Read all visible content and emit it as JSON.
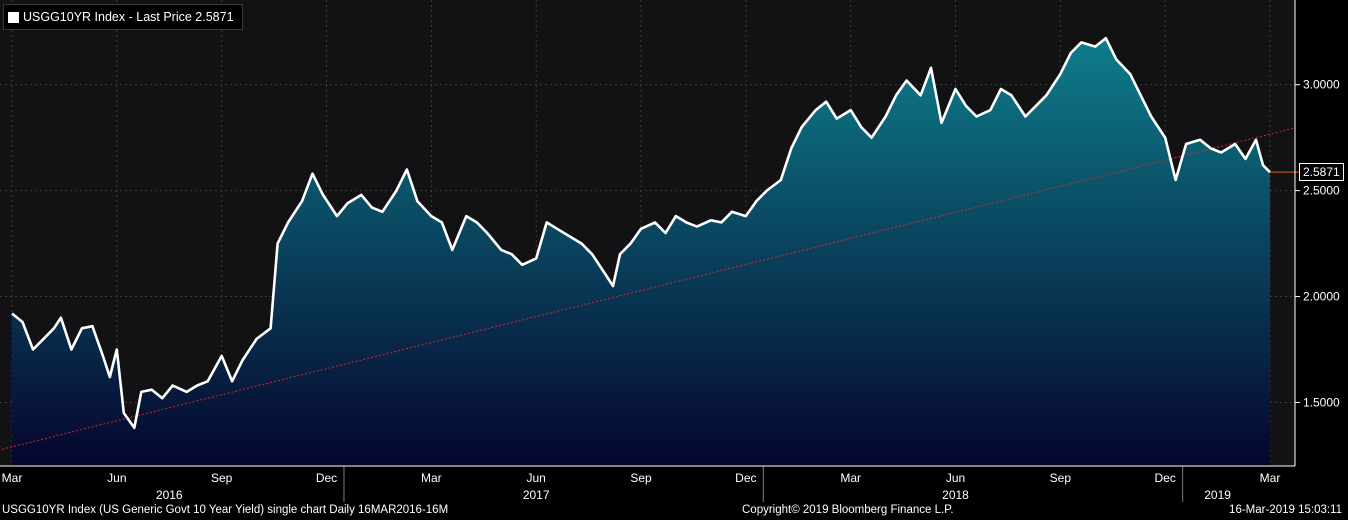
{
  "legend": {
    "label": "USGG10YR Index - Last Price 2.5871",
    "swatch_color": "#ffffff"
  },
  "footer": {
    "left": "USGG10YR Index (US Generic Govt 10 Year Yield) single chart  Daily 16MAR2016-16M",
    "center": "Copyright© 2019 Bloomberg Finance L.P.",
    "right": "16-Mar-2019 15:03:11"
  },
  "chart_data": {
    "type": "area",
    "y_axis_side": "right",
    "ylim": [
      1.2,
      3.4
    ],
    "yticks": [
      {
        "value": 3.0,
        "label": "3.0000"
      },
      {
        "value": 2.5,
        "label": "2.5000"
      },
      {
        "value": 2.0,
        "label": "2.0000"
      },
      {
        "value": 1.5,
        "label": "1.5000"
      }
    ],
    "xlim": [
      0,
      36
    ],
    "month_ticks": [
      {
        "x": 0,
        "label": "Mar"
      },
      {
        "x": 3,
        "label": "Jun"
      },
      {
        "x": 6,
        "label": "Sep"
      },
      {
        "x": 9,
        "label": "Dec"
      },
      {
        "x": 12,
        "label": "Mar"
      },
      {
        "x": 15,
        "label": "Jun"
      },
      {
        "x": 18,
        "label": "Sep"
      },
      {
        "x": 21,
        "label": "Dec"
      },
      {
        "x": 24,
        "label": "Mar"
      },
      {
        "x": 27,
        "label": "Jun"
      },
      {
        "x": 30,
        "label": "Sep"
      },
      {
        "x": 33,
        "label": "Dec"
      },
      {
        "x": 36,
        "label": "Mar"
      }
    ],
    "year_labels": [
      {
        "x": 4.5,
        "label": "2016"
      },
      {
        "x": 15,
        "label": "2017"
      },
      {
        "x": 27,
        "label": "2018"
      },
      {
        "x": 34.5,
        "label": "2019"
      }
    ],
    "year_separators": [
      9.5,
      21.5,
      33.5
    ],
    "series": [
      {
        "values": [
          [
            0.0,
            1.92
          ],
          [
            0.3,
            1.88
          ],
          [
            0.6,
            1.75
          ],
          [
            0.9,
            1.8
          ],
          [
            1.2,
            1.85
          ],
          [
            1.4,
            1.9
          ],
          [
            1.7,
            1.75
          ],
          [
            2.0,
            1.85
          ],
          [
            2.3,
            1.86
          ],
          [
            2.6,
            1.72
          ],
          [
            2.8,
            1.62
          ],
          [
            3.0,
            1.75
          ],
          [
            3.2,
            1.45
          ],
          [
            3.5,
            1.38
          ],
          [
            3.7,
            1.55
          ],
          [
            4.0,
            1.56
          ],
          [
            4.3,
            1.52
          ],
          [
            4.6,
            1.58
          ],
          [
            5.0,
            1.55
          ],
          [
            5.3,
            1.58
          ],
          [
            5.6,
            1.6
          ],
          [
            6.0,
            1.72
          ],
          [
            6.3,
            1.6
          ],
          [
            6.6,
            1.7
          ],
          [
            7.0,
            1.8
          ],
          [
            7.4,
            1.85
          ],
          [
            7.6,
            2.25
          ],
          [
            7.9,
            2.35
          ],
          [
            8.3,
            2.45
          ],
          [
            8.6,
            2.58
          ],
          [
            8.9,
            2.48
          ],
          [
            9.3,
            2.38
          ],
          [
            9.6,
            2.44
          ],
          [
            10.0,
            2.48
          ],
          [
            10.3,
            2.42
          ],
          [
            10.6,
            2.4
          ],
          [
            11.0,
            2.5
          ],
          [
            11.3,
            2.6
          ],
          [
            11.6,
            2.45
          ],
          [
            12.0,
            2.38
          ],
          [
            12.3,
            2.35
          ],
          [
            12.6,
            2.22
          ],
          [
            13.0,
            2.38
          ],
          [
            13.3,
            2.35
          ],
          [
            13.6,
            2.3
          ],
          [
            14.0,
            2.22
          ],
          [
            14.3,
            2.2
          ],
          [
            14.6,
            2.15
          ],
          [
            15.0,
            2.18
          ],
          [
            15.3,
            2.35
          ],
          [
            15.6,
            2.32
          ],
          [
            16.0,
            2.28
          ],
          [
            16.3,
            2.25
          ],
          [
            16.6,
            2.2
          ],
          [
            17.0,
            2.1
          ],
          [
            17.2,
            2.05
          ],
          [
            17.4,
            2.2
          ],
          [
            17.7,
            2.25
          ],
          [
            18.0,
            2.32
          ],
          [
            18.4,
            2.35
          ],
          [
            18.7,
            2.3
          ],
          [
            19.0,
            2.38
          ],
          [
            19.3,
            2.35
          ],
          [
            19.6,
            2.33
          ],
          [
            20.0,
            2.36
          ],
          [
            20.3,
            2.35
          ],
          [
            20.6,
            2.4
          ],
          [
            21.0,
            2.38
          ],
          [
            21.3,
            2.45
          ],
          [
            21.6,
            2.5
          ],
          [
            22.0,
            2.55
          ],
          [
            22.3,
            2.7
          ],
          [
            22.6,
            2.8
          ],
          [
            23.0,
            2.88
          ],
          [
            23.3,
            2.92
          ],
          [
            23.6,
            2.84
          ],
          [
            24.0,
            2.88
          ],
          [
            24.3,
            2.8
          ],
          [
            24.6,
            2.75
          ],
          [
            25.0,
            2.85
          ],
          [
            25.3,
            2.95
          ],
          [
            25.6,
            3.02
          ],
          [
            26.0,
            2.95
          ],
          [
            26.3,
            3.08
          ],
          [
            26.6,
            2.82
          ],
          [
            27.0,
            2.98
          ],
          [
            27.3,
            2.9
          ],
          [
            27.6,
            2.85
          ],
          [
            28.0,
            2.88
          ],
          [
            28.3,
            2.98
          ],
          [
            28.6,
            2.95
          ],
          [
            29.0,
            2.85
          ],
          [
            29.3,
            2.9
          ],
          [
            29.6,
            2.95
          ],
          [
            30.0,
            3.05
          ],
          [
            30.3,
            3.15
          ],
          [
            30.6,
            3.2
          ],
          [
            31.0,
            3.18
          ],
          [
            31.3,
            3.22
          ],
          [
            31.6,
            3.12
          ],
          [
            32.0,
            3.05
          ],
          [
            32.3,
            2.95
          ],
          [
            32.6,
            2.85
          ],
          [
            33.0,
            2.75
          ],
          [
            33.3,
            2.55
          ],
          [
            33.6,
            2.72
          ],
          [
            34.0,
            2.74
          ],
          [
            34.3,
            2.7
          ],
          [
            34.6,
            2.68
          ],
          [
            35.0,
            2.72
          ],
          [
            35.3,
            2.65
          ],
          [
            35.6,
            2.74
          ],
          [
            35.8,
            2.62
          ],
          [
            36.0,
            2.5871
          ]
        ],
        "line_color": "#ffffff",
        "fill_top_color": "#0d7d8a",
        "fill_bottom_color": "#06052e"
      }
    ],
    "trendline": {
      "start": [
        -0.5,
        1.27
      ],
      "end": [
        37.3,
        2.82
      ],
      "color": "#d42a2a",
      "style": "dotted"
    },
    "last_price": {
      "value": 2.5871,
      "label": "2.5871",
      "marker_color": "#e06020"
    },
    "grid": true,
    "grid_color": "#3c3c3c",
    "plot_background": "#121214"
  }
}
